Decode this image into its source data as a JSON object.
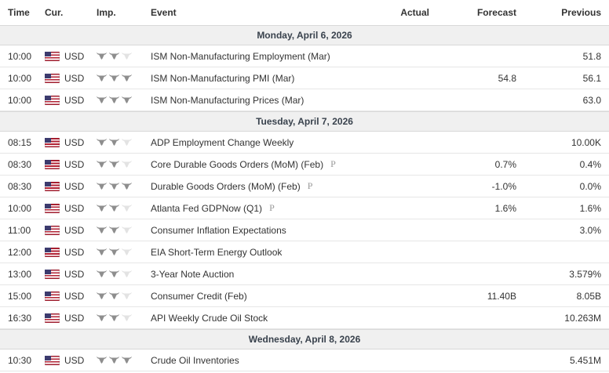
{
  "header": {
    "time": "Time",
    "cur": "Cur.",
    "imp": "Imp.",
    "event": "Event",
    "actual": "Actual",
    "forecast": "Forecast",
    "previous": "Previous"
  },
  "icons": {
    "importance": "bull-icon",
    "currency_flag": "us-flag-icon",
    "prelim_marker": "P"
  },
  "colors": {
    "bull_filled": "#8e8e8e",
    "bull_empty": "#e3e3e3",
    "date_row_bg": "#f0f0f0",
    "row_border": "#e6e6e6",
    "flag_blue": "#3c3b6e",
    "flag_red": "#b22234",
    "text": "#333333",
    "prelim_gray": "#999999"
  },
  "sections": [
    {
      "date": "Monday, April 6, 2026",
      "rows": [
        {
          "time": "10:00",
          "currency": "USD",
          "importance": 2,
          "max_importance": 3,
          "event": "ISM Non-Manufacturing Employment (Mar)",
          "preliminary": false,
          "actual": "",
          "forecast": "",
          "previous": "51.8"
        },
        {
          "time": "10:00",
          "currency": "USD",
          "importance": 3,
          "max_importance": 3,
          "event": "ISM Non-Manufacturing PMI (Mar)",
          "preliminary": false,
          "actual": "",
          "forecast": "54.8",
          "previous": "56.1"
        },
        {
          "time": "10:00",
          "currency": "USD",
          "importance": 3,
          "max_importance": 3,
          "event": "ISM Non-Manufacturing Prices (Mar)",
          "preliminary": false,
          "actual": "",
          "forecast": "",
          "previous": "63.0"
        }
      ]
    },
    {
      "date": "Tuesday, April 7, 2026",
      "rows": [
        {
          "time": "08:15",
          "currency": "USD",
          "importance": 2,
          "max_importance": 3,
          "event": "ADP Employment Change Weekly",
          "preliminary": false,
          "actual": "",
          "forecast": "",
          "previous": "10.00K"
        },
        {
          "time": "08:30",
          "currency": "USD",
          "importance": 2,
          "max_importance": 3,
          "event": "Core Durable Goods Orders (MoM) (Feb)",
          "preliminary": true,
          "actual": "",
          "forecast": "0.7%",
          "previous": "0.4%"
        },
        {
          "time": "08:30",
          "currency": "USD",
          "importance": 3,
          "max_importance": 3,
          "event": "Durable Goods Orders (MoM) (Feb)",
          "preliminary": true,
          "actual": "",
          "forecast": "-1.0%",
          "previous": "0.0%"
        },
        {
          "time": "10:00",
          "currency": "USD",
          "importance": 2,
          "max_importance": 3,
          "event": "Atlanta Fed GDPNow (Q1)",
          "preliminary": true,
          "actual": "",
          "forecast": "1.6%",
          "previous": "1.6%"
        },
        {
          "time": "11:00",
          "currency": "USD",
          "importance": 2,
          "max_importance": 3,
          "event": "Consumer Inflation Expectations",
          "preliminary": false,
          "actual": "",
          "forecast": "",
          "previous": "3.0%"
        },
        {
          "time": "12:00",
          "currency": "USD",
          "importance": 2,
          "max_importance": 3,
          "event": "EIA Short-Term Energy Outlook",
          "preliminary": false,
          "actual": "",
          "forecast": "",
          "previous": ""
        },
        {
          "time": "13:00",
          "currency": "USD",
          "importance": 2,
          "max_importance": 3,
          "event": "3-Year Note Auction",
          "preliminary": false,
          "actual": "",
          "forecast": "",
          "previous": "3.579%"
        },
        {
          "time": "15:00",
          "currency": "USD",
          "importance": 2,
          "max_importance": 3,
          "event": "Consumer Credit (Feb)",
          "preliminary": false,
          "actual": "",
          "forecast": "11.40B",
          "previous": "8.05B"
        },
        {
          "time": "16:30",
          "currency": "USD",
          "importance": 2,
          "max_importance": 3,
          "event": "API Weekly Crude Oil Stock",
          "preliminary": false,
          "actual": "",
          "forecast": "",
          "previous": "10.263M"
        }
      ]
    },
    {
      "date": "Wednesday, April 8, 2026",
      "rows": [
        {
          "time": "10:30",
          "currency": "USD",
          "importance": 3,
          "max_importance": 3,
          "event": "Crude Oil Inventories",
          "preliminary": false,
          "actual": "",
          "forecast": "",
          "previous": "5.451M"
        }
      ]
    }
  ]
}
